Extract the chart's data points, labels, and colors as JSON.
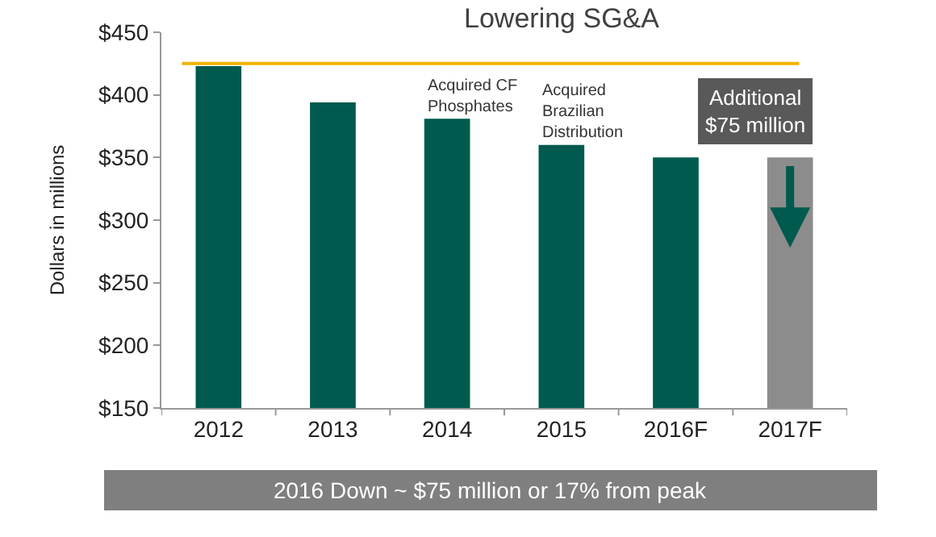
{
  "chart_data": {
    "type": "bar",
    "title": "Lowering SG&A",
    "ylabel": "Dollars in millions",
    "categories": [
      "2012",
      "2013",
      "2014",
      "2015",
      "2016F",
      "2017F"
    ],
    "values": [
      423,
      394,
      381,
      360,
      350,
      350
    ],
    "colors": [
      "#005a4e",
      "#005a4e",
      "#005a4e",
      "#005a4e",
      "#005a4e",
      "#8c8c8c"
    ],
    "ylim": [
      150,
      450
    ],
    "yticks": [
      {
        "value": 150,
        "label": "$150"
      },
      {
        "value": 200,
        "label": "$200"
      },
      {
        "value": 250,
        "label": "$250"
      },
      {
        "value": 300,
        "label": "$300"
      },
      {
        "value": 350,
        "label": "$350"
      },
      {
        "value": 400,
        "label": "$400"
      },
      {
        "value": 450,
        "label": "$450"
      }
    ],
    "ref_lines": [
      {
        "axis": "y",
        "value": 425,
        "color": "#f0b400"
      }
    ],
    "annotations": [
      {
        "text": "Acquired CF\nPhosphates",
        "x": "2014",
        "y": 381
      },
      {
        "text": "Acquired\nBrazilian\nDistribution",
        "x": "2015",
        "y": 360
      },
      "Additional\n$75 million",
      "2016 Down ~ $75 million or 17% from peak"
    ]
  }
}
